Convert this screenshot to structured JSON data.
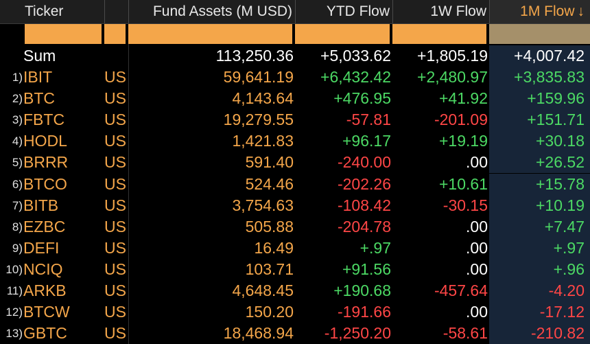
{
  "header": {
    "ticker": "Ticker",
    "assets": "Fund Assets (M USD)",
    "ytd": "YTD Flow",
    "w1": "1W Flow",
    "m1": "1M Flow",
    "sort_icon": "↓"
  },
  "sum": {
    "label": "Sum",
    "assets": "113,250.36",
    "ytd": "+5,033.62",
    "w1": "+1,805.19",
    "m1": "+4,007.42"
  },
  "rows": [
    {
      "idx": "1)",
      "ticker": "IBIT",
      "cty": "US",
      "assets": "59,641.19",
      "ytd": "+6,432.42",
      "w1": "+2,480.97",
      "m1": "+3,835.83"
    },
    {
      "idx": "2)",
      "ticker": "BTC",
      "cty": "US",
      "assets": "4,143.64",
      "ytd": "+476.95",
      "w1": "+41.92",
      "m1": "+159.96"
    },
    {
      "idx": "3)",
      "ticker": "FBTC",
      "cty": "US",
      "assets": "19,279.55",
      "ytd": "-57.81",
      "w1": "-201.09",
      "m1": "+151.71"
    },
    {
      "idx": "4)",
      "ticker": "HODL",
      "cty": "US",
      "assets": "1,421.83",
      "ytd": "+96.17",
      "w1": "+19.19",
      "m1": "+30.18"
    },
    {
      "idx": "5)",
      "ticker": "BRRR",
      "cty": "US",
      "assets": "591.40",
      "ytd": "-240.00",
      "w1": ".00",
      "m1": "+26.52"
    },
    {
      "idx": "6)",
      "ticker": "BTCO",
      "cty": "US",
      "assets": "524.46",
      "ytd": "-202.26",
      "w1": "+10.61",
      "m1": "+15.78"
    },
    {
      "idx": "7)",
      "ticker": "BITB",
      "cty": "US",
      "assets": "3,754.63",
      "ytd": "-108.42",
      "w1": "-30.15",
      "m1": "+10.19"
    },
    {
      "idx": "8)",
      "ticker": "EZBC",
      "cty": "US",
      "assets": "505.88",
      "ytd": "-204.78",
      "w1": ".00",
      "m1": "+7.47"
    },
    {
      "idx": "9)",
      "ticker": "DEFI",
      "cty": "US",
      "assets": "16.49",
      "ytd": "+.97",
      "w1": ".00",
      "m1": "+.97"
    },
    {
      "idx": "10)",
      "ticker": "NCIQ",
      "cty": "US",
      "assets": "103.71",
      "ytd": "+91.56",
      "w1": ".00",
      "m1": "+.96"
    },
    {
      "idx": "11)",
      "ticker": "ARKB",
      "cty": "US",
      "assets": "4,648.45",
      "ytd": "+190.68",
      "w1": "-457.64",
      "m1": "-4.20"
    },
    {
      "idx": "12)",
      "ticker": "BTCW",
      "cty": "US",
      "assets": "150.20",
      "ytd": "-191.66",
      "w1": ".00",
      "m1": "-17.12"
    },
    {
      "idx": "13)",
      "ticker": "GBTC",
      "cty": "US",
      "assets": "18,468.94",
      "ytd": "-1,250.20",
      "w1": "-58.61",
      "m1": "-210.82"
    }
  ],
  "colors": {
    "positive": "#4cd964",
    "negative": "#ff4646",
    "accent": "#f4a64a",
    "selected_column": "#172538"
  }
}
